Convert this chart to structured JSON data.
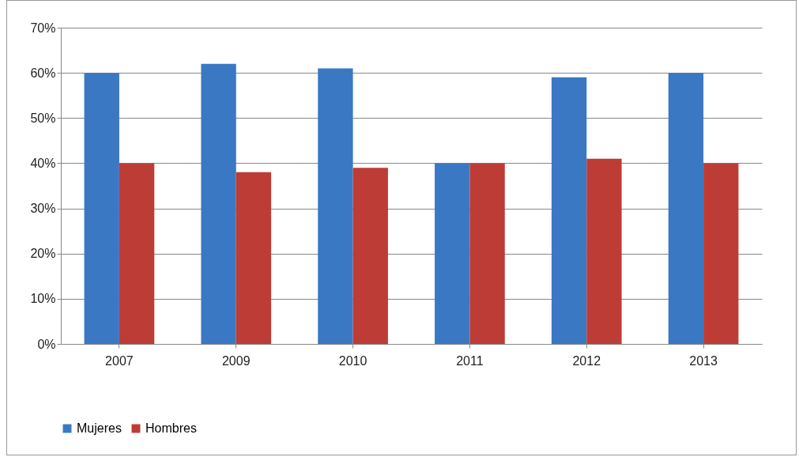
{
  "chart_data": {
    "type": "bar",
    "categories": [
      "2007",
      "2009",
      "2010",
      "2011",
      "2012",
      "2013"
    ],
    "series": [
      {
        "name": "Mujeres",
        "color": "#3b78c3",
        "values": [
          60,
          62,
          61,
          40,
          59,
          60
        ]
      },
      {
        "name": "Hombres",
        "color": "#be3c36",
        "values": [
          40,
          38,
          39,
          40,
          41,
          40
        ]
      }
    ],
    "ylim": [
      0,
      70
    ],
    "yticks": [
      {
        "value": 0,
        "label": "0%"
      },
      {
        "value": 10,
        "label": "10%"
      },
      {
        "value": 20,
        "label": "20%"
      },
      {
        "value": 30,
        "label": "30%"
      },
      {
        "value": 40,
        "label": "40%"
      },
      {
        "value": 50,
        "label": "50%"
      },
      {
        "value": 60,
        "label": "60%"
      },
      {
        "value": 70,
        "label": "70%"
      }
    ],
    "grid": "y",
    "legend": "bottom"
  }
}
